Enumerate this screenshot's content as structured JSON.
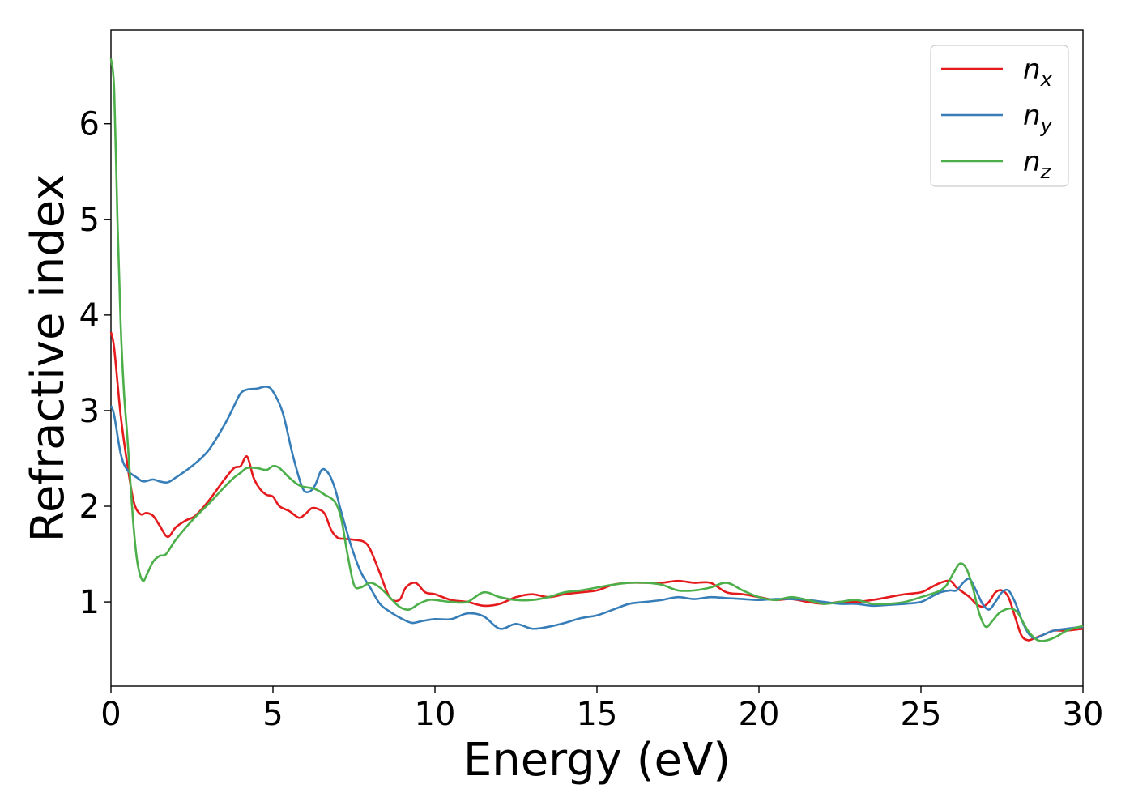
{
  "chart_data": {
    "type": "line",
    "xlabel": "Energy (eV)",
    "ylabel": "Refractive index",
    "xlim": [
      0,
      30
    ],
    "ylim": [
      0.12,
      6.98
    ],
    "xticks": [
      0,
      5,
      10,
      15,
      20,
      25,
      30
    ],
    "xtick_labels": [
      "0",
      "5",
      "10",
      "15",
      "20",
      "25",
      "30"
    ],
    "yticks": [
      1,
      2,
      3,
      4,
      5,
      6
    ],
    "ytick_labels": [
      "1",
      "2",
      "3",
      "4",
      "5",
      "6"
    ],
    "grid": false,
    "legend_position": "top-right",
    "series": [
      {
        "name": "n_x",
        "label_base": "n",
        "label_sub": "x",
        "color": "#e41a1c",
        "x": [
          0,
          0.1,
          0.3,
          0.5,
          0.7,
          0.9,
          1.1,
          1.3,
          1.5,
          1.75,
          2.0,
          2.3,
          2.6,
          3.0,
          3.5,
          3.8,
          4.0,
          4.2,
          4.4,
          4.6,
          4.8,
          5.0,
          5.2,
          5.5,
          5.8,
          6.0,
          6.2,
          6.4,
          6.6,
          6.8,
          7.0,
          7.2,
          7.5,
          7.8,
          8.0,
          8.3,
          8.6,
          8.9,
          9.1,
          9.4,
          9.7,
          10.0,
          10.5,
          11.0,
          11.5,
          12.0,
          12.5,
          13.0,
          13.5,
          14.0,
          14.5,
          15.0,
          15.5,
          16.0,
          16.5,
          17.0,
          17.5,
          18.0,
          18.5,
          19.0,
          19.5,
          20.0,
          20.5,
          21.0,
          21.5,
          22.0,
          22.5,
          23.0,
          23.5,
          24.0,
          24.5,
          25.0,
          25.3,
          25.6,
          25.9,
          26.1,
          26.3,
          26.5,
          26.7,
          26.9,
          27.1,
          27.3,
          27.5,
          27.7,
          27.9,
          28.1,
          28.3,
          28.5,
          28.8,
          29.1,
          29.5,
          30.0
        ],
        "y": [
          3.82,
          3.65,
          2.95,
          2.45,
          2.05,
          1.92,
          1.93,
          1.9,
          1.8,
          1.68,
          1.78,
          1.85,
          1.9,
          2.05,
          2.28,
          2.4,
          2.42,
          2.52,
          2.3,
          2.18,
          2.12,
          2.1,
          2.0,
          1.95,
          1.88,
          1.92,
          1.98,
          1.97,
          1.92,
          1.75,
          1.67,
          1.66,
          1.65,
          1.63,
          1.55,
          1.3,
          1.05,
          1.02,
          1.15,
          1.2,
          1.1,
          1.08,
          1.02,
          1.0,
          0.96,
          0.98,
          1.05,
          1.08,
          1.05,
          1.08,
          1.1,
          1.12,
          1.18,
          1.2,
          1.2,
          1.2,
          1.22,
          1.2,
          1.2,
          1.1,
          1.08,
          1.05,
          1.02,
          1.03,
          1.0,
          0.98,
          1.0,
          1.0,
          1.02,
          1.05,
          1.08,
          1.1,
          1.15,
          1.2,
          1.22,
          1.15,
          1.1,
          1.05,
          0.98,
          0.95,
          1.0,
          1.1,
          1.12,
          1.05,
          0.85,
          0.65,
          0.6,
          0.62,
          0.66,
          0.7,
          0.7,
          0.72
        ]
      },
      {
        "name": "n_y",
        "label_base": "n",
        "label_sub": "y",
        "color": "#377eb8",
        "x": [
          0,
          0.1,
          0.3,
          0.5,
          0.8,
          1.0,
          1.3,
          1.5,
          1.75,
          2.0,
          2.5,
          3.0,
          3.5,
          3.8,
          4.0,
          4.2,
          4.5,
          4.8,
          5.0,
          5.3,
          5.6,
          5.9,
          6.1,
          6.3,
          6.5,
          6.7,
          6.9,
          7.1,
          7.4,
          7.7,
          8.0,
          8.3,
          8.6,
          9.0,
          9.3,
          9.6,
          10.0,
          10.5,
          11.0,
          11.5,
          12.0,
          12.5,
          13.0,
          13.5,
          14.0,
          14.5,
          15.0,
          15.5,
          16.0,
          16.5,
          17.0,
          17.5,
          18.0,
          18.5,
          19.0,
          19.5,
          20.0,
          20.5,
          21.0,
          21.5,
          22.0,
          22.5,
          23.0,
          23.5,
          24.0,
          24.5,
          25.0,
          25.3,
          25.6,
          25.9,
          26.1,
          26.3,
          26.5,
          26.7,
          26.9,
          27.1,
          27.3,
          27.5,
          27.7,
          27.9,
          28.1,
          28.3,
          28.5,
          28.8,
          29.1,
          29.5,
          30.0
        ],
        "y": [
          3.05,
          2.95,
          2.55,
          2.38,
          2.3,
          2.26,
          2.28,
          2.26,
          2.25,
          2.3,
          2.42,
          2.58,
          2.85,
          3.05,
          3.18,
          3.22,
          3.23,
          3.25,
          3.2,
          2.98,
          2.55,
          2.2,
          2.15,
          2.22,
          2.38,
          2.35,
          2.2,
          1.95,
          1.6,
          1.32,
          1.15,
          0.98,
          0.9,
          0.82,
          0.78,
          0.8,
          0.82,
          0.82,
          0.88,
          0.85,
          0.72,
          0.77,
          0.72,
          0.74,
          0.78,
          0.83,
          0.86,
          0.92,
          0.98,
          1.0,
          1.02,
          1.05,
          1.03,
          1.05,
          1.04,
          1.03,
          1.02,
          1.03,
          1.03,
          1.02,
          1.0,
          0.98,
          0.98,
          0.96,
          0.97,
          0.98,
          1.0,
          1.05,
          1.1,
          1.12,
          1.12,
          1.2,
          1.24,
          1.12,
          0.98,
          0.92,
          1.0,
          1.1,
          1.12,
          1.0,
          0.82,
          0.68,
          0.62,
          0.66,
          0.7,
          0.72,
          0.74
        ]
      },
      {
        "name": "n_z",
        "label_base": "n",
        "label_sub": "z",
        "color": "#4daf4a",
        "x": [
          0,
          0.1,
          0.2,
          0.3,
          0.4,
          0.5,
          0.6,
          0.7,
          0.8,
          0.9,
          1.0,
          1.1,
          1.3,
          1.5,
          1.7,
          2.0,
          2.5,
          3.0,
          3.5,
          3.8,
          4.0,
          4.2,
          4.5,
          4.8,
          5.0,
          5.2,
          5.5,
          5.8,
          6.0,
          6.3,
          6.6,
          6.9,
          7.1,
          7.3,
          7.5,
          7.7,
          8.0,
          8.3,
          8.6,
          8.9,
          9.2,
          9.5,
          9.8,
          10.0,
          10.5,
          11.0,
          11.5,
          12.0,
          12.5,
          13.0,
          13.5,
          14.0,
          14.5,
          15.0,
          15.5,
          16.0,
          16.5,
          17.0,
          17.5,
          18.0,
          18.5,
          19.0,
          19.5,
          20.0,
          20.5,
          21.0,
          21.5,
          22.0,
          22.5,
          23.0,
          23.5,
          24.0,
          24.5,
          25.0,
          25.3,
          25.6,
          25.8,
          26.0,
          26.2,
          26.4,
          26.6,
          26.8,
          27.0,
          27.2,
          27.4,
          27.6,
          27.8,
          28.0,
          28.3,
          28.6,
          28.9,
          29.2,
          29.5,
          30.0
        ],
        "y": [
          6.68,
          6.35,
          5.0,
          3.9,
          3.2,
          2.75,
          2.25,
          1.78,
          1.45,
          1.28,
          1.22,
          1.28,
          1.42,
          1.48,
          1.5,
          1.65,
          1.85,
          2.02,
          2.2,
          2.3,
          2.35,
          2.4,
          2.4,
          2.38,
          2.42,
          2.4,
          2.3,
          2.22,
          2.2,
          2.18,
          2.12,
          2.05,
          1.88,
          1.5,
          1.18,
          1.15,
          1.2,
          1.15,
          1.05,
          0.95,
          0.92,
          0.98,
          1.02,
          1.02,
          1.0,
          1.0,
          1.1,
          1.05,
          1.02,
          1.02,
          1.05,
          1.1,
          1.12,
          1.15,
          1.18,
          1.2,
          1.2,
          1.18,
          1.12,
          1.12,
          1.15,
          1.2,
          1.12,
          1.05,
          1.02,
          1.05,
          1.02,
          0.98,
          1.0,
          1.02,
          0.98,
          0.98,
          1.0,
          1.05,
          1.08,
          1.12,
          1.18,
          1.3,
          1.4,
          1.35,
          1.15,
          0.88,
          0.74,
          0.8,
          0.88,
          0.92,
          0.93,
          0.88,
          0.7,
          0.6,
          0.6,
          0.64,
          0.7,
          0.75
        ]
      }
    ]
  }
}
